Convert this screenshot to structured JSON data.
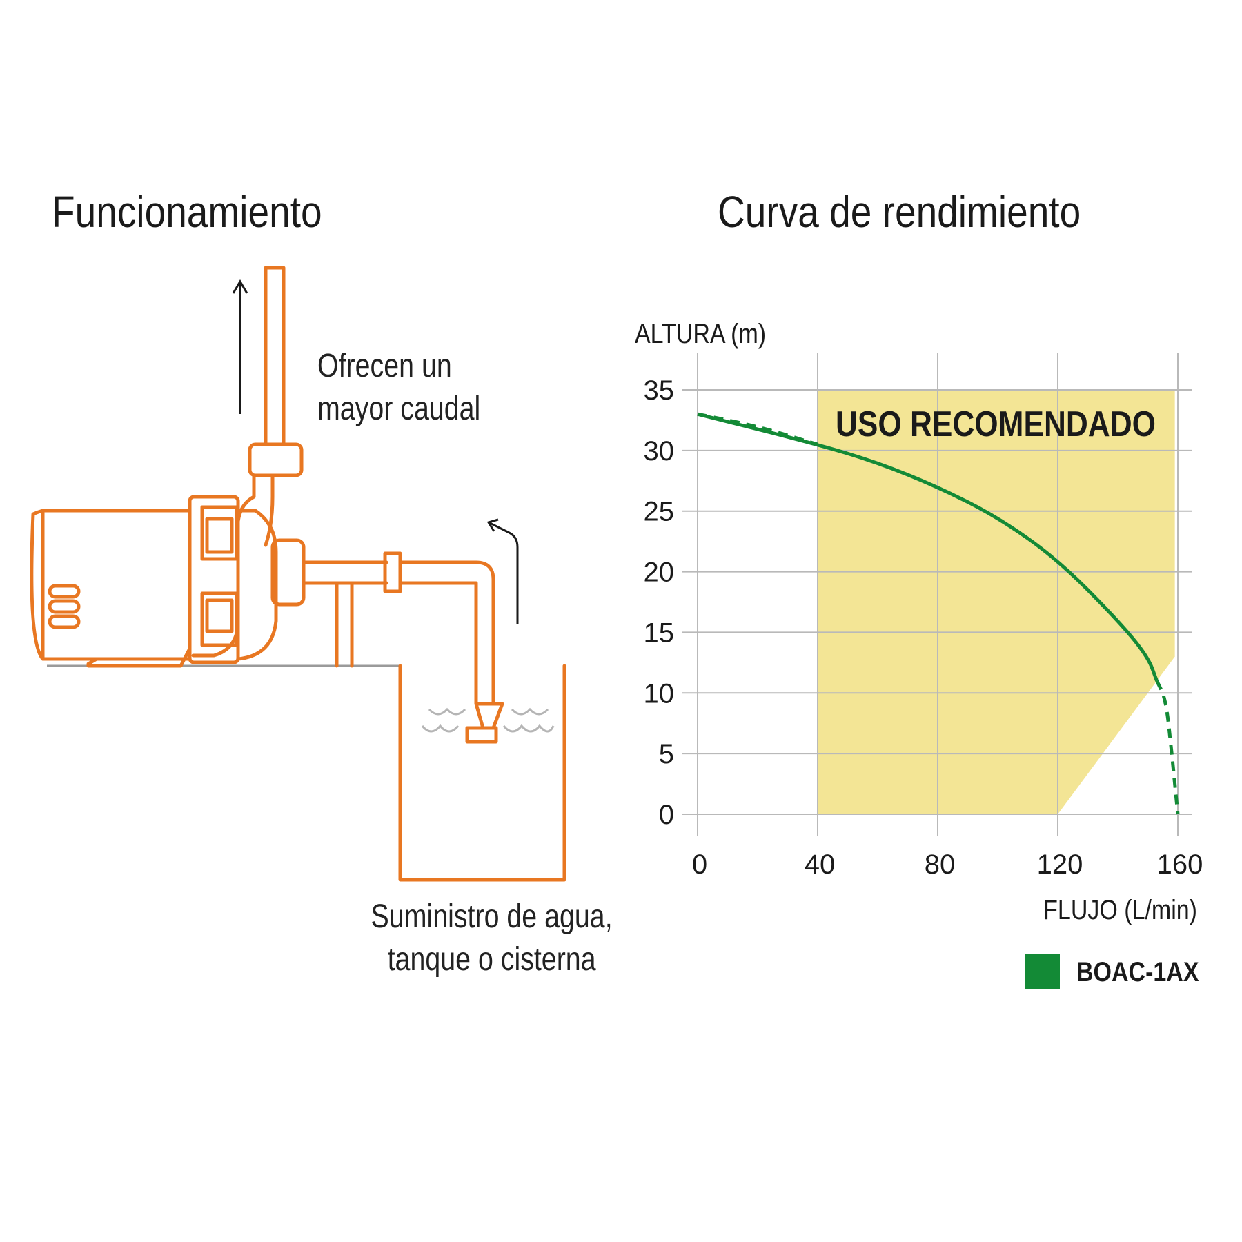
{
  "titles": {
    "left": "Funcionamiento",
    "right": "Curva de rendimiento"
  },
  "captions": {
    "flow_line1": "Ofrecen un",
    "flow_line2": "mayor caudal",
    "supply_line1": "Suministro de agua,",
    "supply_line2": "tanque o cisterna"
  },
  "colors": {
    "pump_stroke": "#e87722",
    "curve": "#138a36",
    "recommended_zone": "#f3e595",
    "grid": "#b9b9b9"
  },
  "chart_data": {
    "type": "line",
    "xlabel": "FLUJO (L/min)",
    "ylabel": "ALTURA (m)",
    "x_ticks": [
      "0",
      "40",
      "80",
      "120",
      "160"
    ],
    "y_ticks": [
      "0",
      "5",
      "10",
      "15",
      "20",
      "25",
      "30",
      "35"
    ],
    "xlim": [
      0,
      160
    ],
    "ylim": [
      0,
      35
    ],
    "grid": true,
    "legend_position": "bottom-right",
    "series": [
      {
        "name": "BOAC-1AX",
        "color": "#138a36",
        "x": [
          0,
          40,
          60,
          80,
          100,
          120,
          140,
          150,
          153
        ],
        "y": [
          33,
          30.5,
          29,
          27,
          24.5,
          21,
          16,
          13,
          11
        ],
        "extrapolated_start": {
          "x": [
            0,
            20,
            40
          ],
          "y": [
            33,
            32,
            30.5
          ]
        },
        "extrapolated_end": {
          "x": [
            153,
            156,
            158,
            160
          ],
          "y": [
            11,
            9.5,
            5,
            0
          ]
        }
      }
    ],
    "annotations": [
      {
        "text": "USO RECOMENDADO",
        "region": {
          "x_min": 40,
          "x_max": 160,
          "y_min": 0,
          "y_max": 35,
          "lower_right_cut": [
            [
              120,
              0
            ],
            [
              160,
              13
            ]
          ]
        }
      }
    ]
  }
}
